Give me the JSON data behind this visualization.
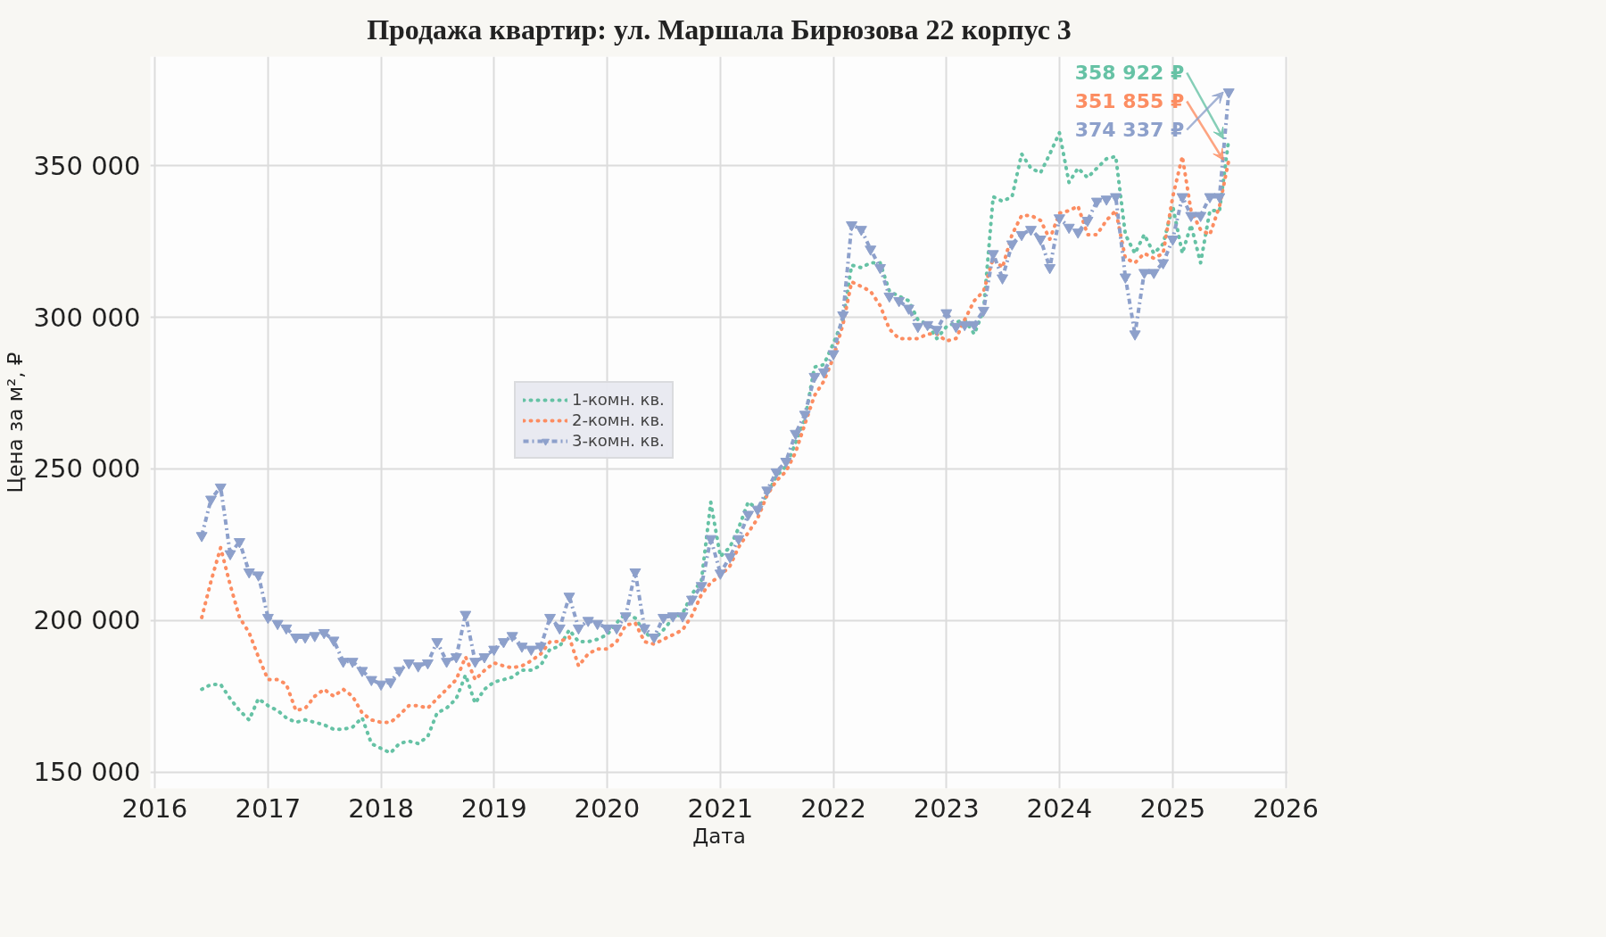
{
  "chart_data": {
    "type": "line",
    "title": "Продажа квартир: ул. Маршала Бирюзова 22 корпус 3",
    "xlabel": "Дата",
    "ylabel": "Цена за м², ₽",
    "x": [
      "2016-06",
      "2016-07",
      "2016-08",
      "2016-09",
      "2016-10",
      "2016-11",
      "2016-12",
      "2017-01",
      "2017-02",
      "2017-03",
      "2017-04",
      "2017-05",
      "2017-06",
      "2017-07",
      "2017-08",
      "2017-09",
      "2017-10",
      "2017-11",
      "2017-12",
      "2018-01",
      "2018-02",
      "2018-03",
      "2018-04",
      "2018-05",
      "2018-06",
      "2018-07",
      "2018-08",
      "2018-09",
      "2018-10",
      "2018-11",
      "2018-12",
      "2019-01",
      "2019-02",
      "2019-03",
      "2019-04",
      "2019-05",
      "2019-06",
      "2019-07",
      "2019-08",
      "2019-09",
      "2019-10",
      "2019-11",
      "2019-12",
      "2020-01",
      "2020-02",
      "2020-03",
      "2020-04",
      "2020-05",
      "2020-06",
      "2020-07",
      "2020-08",
      "2020-09",
      "2020-10",
      "2020-11",
      "2020-12",
      "2021-01",
      "2021-02",
      "2021-03",
      "2021-04",
      "2021-05",
      "2021-06",
      "2021-07",
      "2021-08",
      "2021-09",
      "2021-10",
      "2021-11",
      "2021-12",
      "2022-01",
      "2022-02",
      "2022-03",
      "2022-04",
      "2022-05",
      "2022-06",
      "2022-07",
      "2022-08",
      "2022-09",
      "2022-10",
      "2022-11",
      "2022-12",
      "2023-01",
      "2023-02",
      "2023-03",
      "2023-04",
      "2023-05",
      "2023-06",
      "2023-07",
      "2023-08",
      "2023-09",
      "2023-10",
      "2023-11",
      "2023-12",
      "2024-01",
      "2024-02",
      "2024-03",
      "2024-04",
      "2024-05",
      "2024-06",
      "2024-07",
      "2024-08",
      "2024-09",
      "2024-10",
      "2024-11",
      "2024-12",
      "2025-01",
      "2025-02",
      "2025-03",
      "2025-04",
      "2025-05",
      "2025-06",
      "2025-07"
    ],
    "series": [
      {
        "name": "1-комн. кв.",
        "color": "#66c2a5",
        "line_style": "dotted",
        "values": [
          177300,
          178900,
          178900,
          174200,
          170300,
          167200,
          174200,
          171900,
          170300,
          167900,
          166400,
          167200,
          166400,
          165600,
          164100,
          164100,
          164800,
          167900,
          159400,
          157800,
          156300,
          159400,
          160200,
          159400,
          161700,
          169500,
          171100,
          174200,
          182000,
          172700,
          177300,
          179700,
          180500,
          181300,
          183600,
          183600,
          185200,
          190600,
          191400,
          196900,
          193000,
          193000,
          193800,
          195300,
          199200,
          202300,
          200800,
          196100,
          193800,
          196900,
          200800,
          202300,
          208600,
          213300,
          239000,
          221100,
          224200,
          230500,
          239100,
          236700,
          241400,
          247700,
          250800,
          258600,
          266400,
          283600,
          284400,
          291400,
          299200,
          317200,
          316400,
          318000,
          318000,
          308600,
          307000,
          305500,
          299200,
          297700,
          293000,
          296900,
          298400,
          299200,
          294500,
          302300,
          339800,
          338300,
          339800,
          353900,
          349200,
          347700,
          353900,
          360900,
          344500,
          349200,
          346100,
          349200,
          352300,
          353100,
          327300,
          321100,
          327300,
          321100,
          324200,
          336700,
          321100,
          330500,
          318000,
          335200,
          335200,
          358922
        ]
      },
      {
        "name": "2-комн. кв.",
        "color": "#fc8d62",
        "line_style": "dotted",
        "values": [
          201000,
          213000,
          224000,
          211700,
          201000,
          196000,
          188000,
          180500,
          180500,
          179000,
          170300,
          171000,
          175000,
          177300,
          175000,
          177300,
          175000,
          169500,
          167200,
          166400,
          166400,
          168800,
          171900,
          171900,
          171100,
          174200,
          177300,
          180500,
          188000,
          180500,
          183500,
          186000,
          185000,
          184400,
          185000,
          186700,
          189000,
          193000,
          193000,
          194500,
          185000,
          189000,
          190600,
          190600,
          193000,
          198400,
          199200,
          193000,
          192200,
          193800,
          195300,
          196900,
          201600,
          208600,
          212500,
          214800,
          218000,
          224200,
          229000,
          233600,
          241400,
          246100,
          249200,
          255500,
          264800,
          274200,
          278900,
          286700,
          297700,
          311700,
          310200,
          308600,
          303900,
          296100,
          293000,
          293000,
          293000,
          294500,
          294500,
          292200,
          293000,
          299200,
          305500,
          308600,
          319500,
          316400,
          327300,
          333600,
          333600,
          332000,
          325800,
          334400,
          335200,
          336700,
          327300,
          327300,
          332000,
          335200,
          319500,
          318000,
          321100,
          319500,
          321100,
          339800,
          353100,
          335200,
          328900,
          327300,
          336700,
          351855
        ]
      },
      {
        "name": "3-комн. кв.",
        "color": "#8da0cb",
        "line_style": "dashed",
        "marker": "triangle",
        "values": [
          228000,
          240000,
          244000,
          222000,
          226000,
          216000,
          215000,
          201000,
          199000,
          197500,
          194500,
          194500,
          195000,
          196000,
          193500,
          186500,
          186500,
          183500,
          180500,
          179000,
          179700,
          183500,
          186000,
          185000,
          186000,
          193000,
          186500,
          188000,
          202000,
          186500,
          188000,
          190500,
          193000,
          195000,
          191500,
          190500,
          191500,
          201000,
          197500,
          208000,
          197500,
          200000,
          199000,
          197500,
          197500,
          201500,
          216000,
          197500,
          194500,
          201000,
          201500,
          201500,
          207000,
          211500,
          227000,
          215600,
          221000,
          227000,
          235000,
          236700,
          243000,
          249000,
          252500,
          261700,
          268000,
          280500,
          282000,
          288000,
          300800,
          330500,
          329000,
          322500,
          316400,
          307000,
          305500,
          303000,
          297000,
          297600,
          296000,
          301500,
          297000,
          297600,
          297600,
          302300,
          321000,
          313000,
          324200,
          327300,
          329000,
          325800,
          316400,
          332800,
          329700,
          328100,
          332000,
          338300,
          339000,
          339800,
          313300,
          294500,
          314800,
          314800,
          318000,
          325800,
          339800,
          333600,
          333600,
          339800,
          339800,
          374337
        ]
      }
    ],
    "annotations": [
      {
        "text": "358 922 ₽",
        "x": "2025-07",
        "y": 358922
      },
      {
        "text": "351 855 ₽",
        "x": "2025-07",
        "y": 351855
      },
      {
        "text": "374 337 ₽",
        "x": "2025-07",
        "y": 374337
      }
    ],
    "xlim": [
      "2015-12-18",
      "2026-01-08"
    ],
    "xticks": [
      "2016",
      "2017",
      "2018",
      "2019",
      "2020",
      "2021",
      "2022",
      "2023",
      "2024",
      "2025",
      "2026"
    ],
    "ylim": [
      144600,
      386000
    ],
    "yticks": [
      {
        "value": 150000,
        "label": "150 000"
      },
      {
        "value": 200000,
        "label": "200 000"
      },
      {
        "value": 250000,
        "label": "250 000"
      },
      {
        "value": 300000,
        "label": "300 000"
      },
      {
        "value": 350000,
        "label": "350 000"
      }
    ],
    "grid": true,
    "legend": "center"
  }
}
